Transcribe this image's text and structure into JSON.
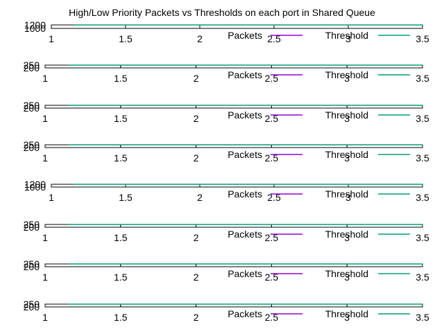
{
  "chart_data": {
    "type": "line",
    "title": "High/Low Priority Packets vs Thresholds on each port in Shared Queue",
    "xlim": [
      1,
      3.5
    ],
    "x_ticks": [
      "1",
      "1.5",
      "2",
      "2.5",
      "3",
      "3.5"
    ],
    "legend": "top-right",
    "colors": {
      "Packets": "#9400d3",
      "Threshold": "#009e73"
    },
    "panels": [
      {
        "y_ticks": [
          "1000",
          "1200"
        ],
        "ylim": [
          1000,
          1200
        ],
        "series": [
          {
            "name": "Packets",
            "x": [],
            "y": []
          },
          {
            "name": "Threshold",
            "x": [
              1.15,
              1.5,
              2,
              2.5,
              3,
              3.5
            ],
            "y": [
              1200,
              1200,
              1200,
              1200,
              1200,
              1200
            ]
          }
        ]
      },
      {
        "y_ticks": [
          "200",
          "250"
        ],
        "ylim": [
          200,
          250
        ],
        "series": [
          {
            "name": "Packets",
            "x": [],
            "y": []
          },
          {
            "name": "Threshold",
            "x": [
              1.15,
              1.5,
              2,
              2.5,
              3,
              3.5
            ],
            "y": [
              250,
              250,
              250,
              250,
              250,
              250
            ]
          }
        ]
      },
      {
        "y_ticks": [
          "200",
          "250"
        ],
        "ylim": [
          200,
          250
        ],
        "series": [
          {
            "name": "Packets",
            "x": [],
            "y": []
          },
          {
            "name": "Threshold",
            "x": [
              1.15,
              1.5,
              2,
              2.5,
              3,
              3.5
            ],
            "y": [
              250,
              250,
              250,
              250,
              250,
              250
            ]
          }
        ]
      },
      {
        "y_ticks": [
          "200",
          "250"
        ],
        "ylim": [
          200,
          250
        ],
        "series": [
          {
            "name": "Packets",
            "x": [],
            "y": []
          },
          {
            "name": "Threshold",
            "x": [
              1.15,
              1.5,
              2,
              2.5,
              3,
              3.5
            ],
            "y": [
              250,
              250,
              250,
              250,
              250,
              250
            ]
          }
        ]
      },
      {
        "y_ticks": [
          "1000",
          "1200"
        ],
        "ylim": [
          1000,
          1200
        ],
        "series": [
          {
            "name": "Packets",
            "x": [],
            "y": []
          },
          {
            "name": "Threshold",
            "x": [
              1.15,
              1.5,
              2,
              2.5,
              3,
              3.5
            ],
            "y": [
              1200,
              1200,
              1200,
              1200,
              1200,
              1200
            ]
          }
        ]
      },
      {
        "y_ticks": [
          "200",
          "250"
        ],
        "ylim": [
          200,
          250
        ],
        "series": [
          {
            "name": "Packets",
            "x": [],
            "y": []
          },
          {
            "name": "Threshold",
            "x": [
              1.15,
              1.5,
              2,
              2.5,
              3,
              3.5
            ],
            "y": [
              250,
              250,
              250,
              250,
              250,
              250
            ]
          }
        ]
      },
      {
        "y_ticks": [
          "200",
          "250"
        ],
        "ylim": [
          200,
          250
        ],
        "series": [
          {
            "name": "Packets",
            "x": [],
            "y": []
          },
          {
            "name": "Threshold",
            "x": [
              1.15,
              1.5,
              2,
              2.5,
              3,
              3.5
            ],
            "y": [
              250,
              250,
              250,
              250,
              250,
              250
            ]
          }
        ]
      },
      {
        "y_ticks": [
          "200",
          "250"
        ],
        "ylim": [
          200,
          250
        ],
        "series": [
          {
            "name": "Packets",
            "x": [],
            "y": []
          },
          {
            "name": "Threshold",
            "x": [
              1.15,
              1.5,
              2,
              2.5,
              3,
              3.5
            ],
            "y": [
              250,
              250,
              250,
              250,
              250,
              250
            ]
          }
        ]
      }
    ]
  }
}
